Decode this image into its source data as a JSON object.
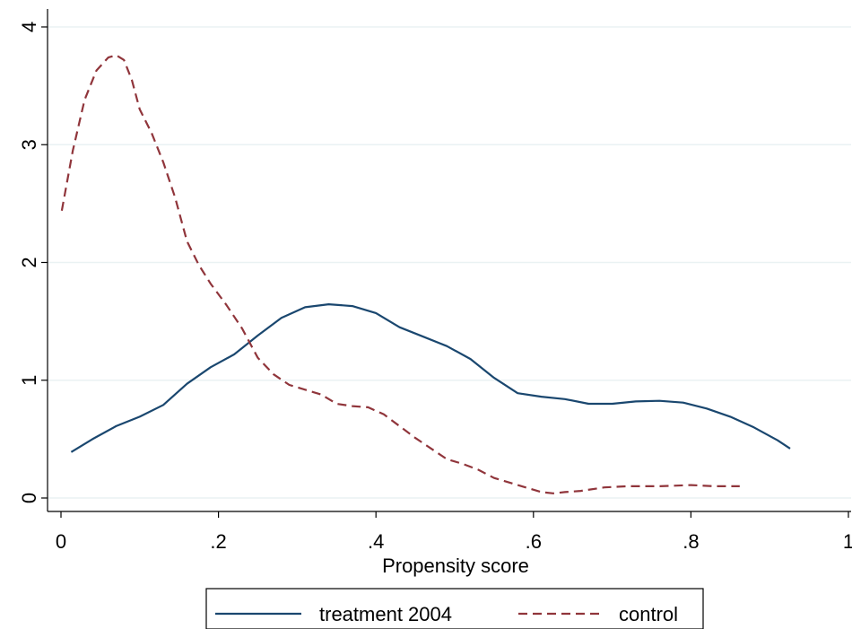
{
  "chart_data": {
    "type": "line",
    "title": "",
    "xlabel": "Propensity score",
    "ylabel": "",
    "xlim": [
      0,
      1
    ],
    "ylim": [
      0,
      4
    ],
    "x_ticks": [
      {
        "value": 0,
        "label": "0"
      },
      {
        "value": 0.2,
        "label": ".2"
      },
      {
        "value": 0.4,
        "label": ".4"
      },
      {
        "value": 0.6,
        "label": ".6"
      },
      {
        "value": 0.8,
        "label": ".8"
      },
      {
        "value": 1,
        "label": "1"
      }
    ],
    "y_ticks": [
      {
        "value": 0,
        "label": "0"
      },
      {
        "value": 1,
        "label": "1"
      },
      {
        "value": 2,
        "label": "2"
      },
      {
        "value": 3,
        "label": "3"
      },
      {
        "value": 4,
        "label": "4"
      }
    ],
    "grid": "horizontal",
    "legend_position": "bottom",
    "series": [
      {
        "name": "treatment 2004",
        "color": "#1a476f",
        "dash": "solid",
        "points": [
          [
            0.013,
            0.39
          ],
          [
            0.04,
            0.5
          ],
          [
            0.07,
            0.61
          ],
          [
            0.1,
            0.69
          ],
          [
            0.13,
            0.79
          ],
          [
            0.16,
            0.97
          ],
          [
            0.19,
            1.11
          ],
          [
            0.22,
            1.22
          ],
          [
            0.25,
            1.38
          ],
          [
            0.28,
            1.53
          ],
          [
            0.31,
            1.62
          ],
          [
            0.34,
            1.645
          ],
          [
            0.37,
            1.63
          ],
          [
            0.4,
            1.57
          ],
          [
            0.43,
            1.45
          ],
          [
            0.46,
            1.37
          ],
          [
            0.49,
            1.29
          ],
          [
            0.52,
            1.18
          ],
          [
            0.55,
            1.02
          ],
          [
            0.58,
            0.89
          ],
          [
            0.61,
            0.86
          ],
          [
            0.64,
            0.84
          ],
          [
            0.67,
            0.8
          ],
          [
            0.7,
            0.8
          ],
          [
            0.73,
            0.82
          ],
          [
            0.76,
            0.825
          ],
          [
            0.79,
            0.81
          ],
          [
            0.82,
            0.76
          ],
          [
            0.85,
            0.69
          ],
          [
            0.88,
            0.6
          ],
          [
            0.91,
            0.49
          ],
          [
            0.926,
            0.42
          ]
        ]
      },
      {
        "name": "control",
        "color": "#90353b",
        "dash": "dashed",
        "points": [
          [
            0.001,
            2.44
          ],
          [
            0.015,
            2.95
          ],
          [
            0.03,
            3.38
          ],
          [
            0.045,
            3.63
          ],
          [
            0.06,
            3.74
          ],
          [
            0.07,
            3.76
          ],
          [
            0.08,
            3.72
          ],
          [
            0.09,
            3.55
          ],
          [
            0.1,
            3.3
          ],
          [
            0.115,
            3.1
          ],
          [
            0.13,
            2.85
          ],
          [
            0.145,
            2.55
          ],
          [
            0.16,
            2.18
          ],
          [
            0.175,
            1.98
          ],
          [
            0.19,
            1.82
          ],
          [
            0.21,
            1.64
          ],
          [
            0.23,
            1.44
          ],
          [
            0.25,
            1.19
          ],
          [
            0.27,
            1.05
          ],
          [
            0.29,
            0.96
          ],
          [
            0.31,
            0.92
          ],
          [
            0.33,
            0.88
          ],
          [
            0.35,
            0.8
          ],
          [
            0.37,
            0.78
          ],
          [
            0.39,
            0.77
          ],
          [
            0.41,
            0.71
          ],
          [
            0.43,
            0.61
          ],
          [
            0.45,
            0.51
          ],
          [
            0.47,
            0.42
          ],
          [
            0.49,
            0.33
          ],
          [
            0.51,
            0.29
          ],
          [
            0.53,
            0.24
          ],
          [
            0.55,
            0.17
          ],
          [
            0.57,
            0.13
          ],
          [
            0.59,
            0.09
          ],
          [
            0.61,
            0.05
          ],
          [
            0.625,
            0.04
          ],
          [
            0.64,
            0.05
          ],
          [
            0.66,
            0.06
          ],
          [
            0.69,
            0.09
          ],
          [
            0.72,
            0.1
          ],
          [
            0.76,
            0.1
          ],
          [
            0.8,
            0.11
          ],
          [
            0.83,
            0.1
          ],
          [
            0.862,
            0.1
          ]
        ]
      }
    ]
  }
}
